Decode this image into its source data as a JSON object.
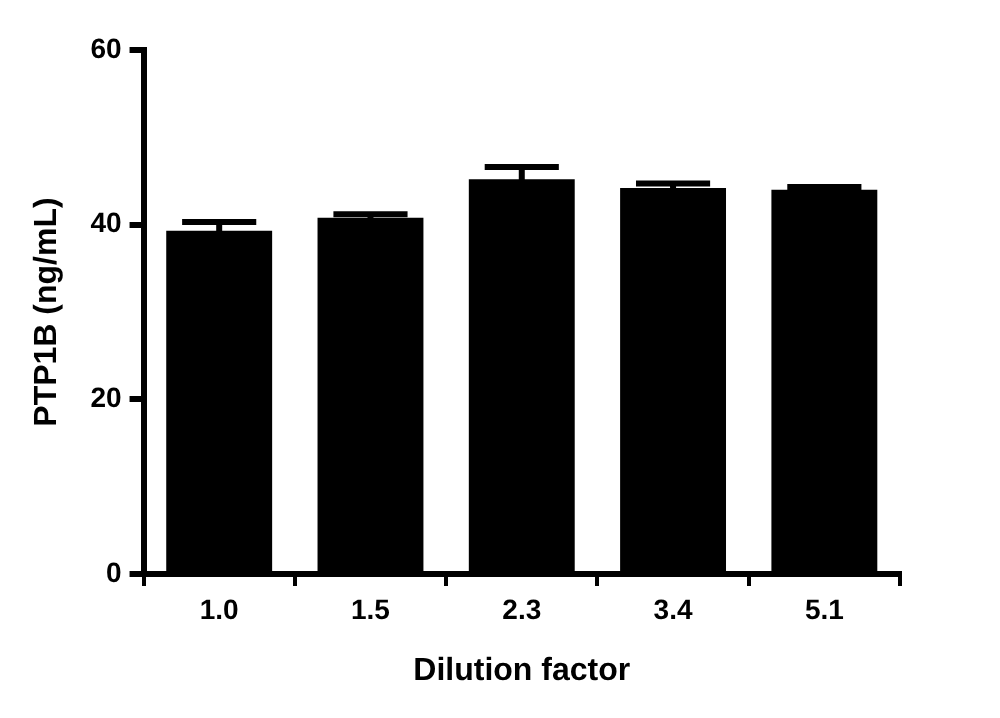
{
  "chart_data": {
    "type": "bar",
    "xlabel": "Dilution factor",
    "ylabel": "PTP1B (ng/mL)",
    "categories": [
      "1.0",
      "1.5",
      "2.3",
      "3.4",
      "5.1"
    ],
    "values": [
      39.3,
      40.8,
      45.2,
      44.2,
      44.0
    ],
    "errors": [
      1.0,
      0.4,
      1.4,
      0.5,
      0.3
    ],
    "color": "#000000",
    "ylim": [
      0,
      60
    ],
    "yticks": [
      0,
      20,
      40,
      60
    ],
    "grid": false,
    "legend": false
  }
}
